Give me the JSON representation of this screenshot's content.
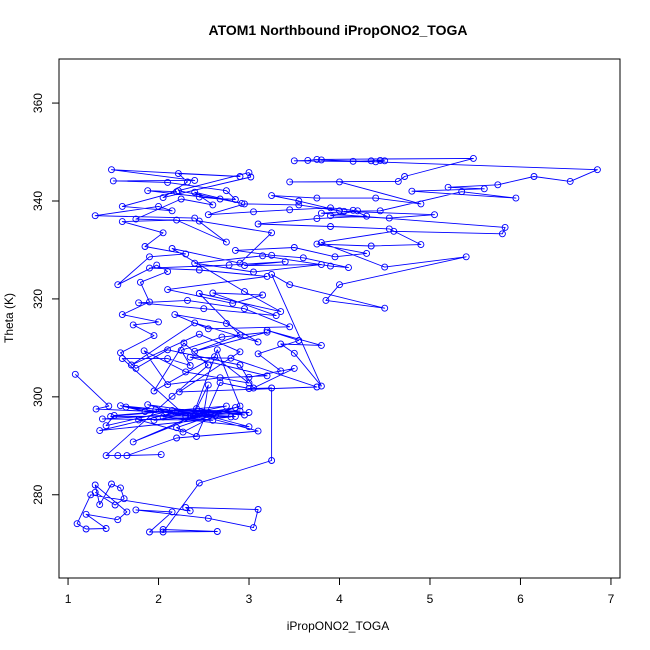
{
  "chart_data": {
    "type": "line",
    "title": "ATOM1 Northbound iPropONO2_TOGA",
    "xlabel": "iPropONO2_TOGA",
    "ylabel": "Theta (K)",
    "xlim": [
      0.9,
      7.1
    ],
    "ylim": [
      263,
      369
    ],
    "x_ticks": [
      1,
      2,
      3,
      4,
      5,
      6,
      7
    ],
    "y_ticks": [
      280,
      300,
      320,
      340,
      360
    ],
    "grid": false,
    "legend": "none",
    "series": [
      {
        "color": "#0000FF",
        "marker": "open-circle",
        "points": [
          [
            1.08,
            304.6
          ],
          [
            1.45,
            298.1
          ],
          [
            1.31,
            297.5
          ],
          [
            2.08,
            296.9
          ],
          [
            2.48,
            296.2
          ],
          [
            3.0,
            296.8
          ],
          [
            2.15,
            297.2
          ],
          [
            1.42,
            294.1
          ],
          [
            1.51,
            296.2
          ],
          [
            2.42,
            297.6
          ],
          [
            2.95,
            296.3
          ],
          [
            1.64,
            297.9
          ],
          [
            2.35,
            296.1
          ],
          [
            1.97,
            297.4
          ],
          [
            2.9,
            297.1
          ],
          [
            1.38,
            295.5
          ],
          [
            2.6,
            295.2
          ],
          [
            2.05,
            295.9
          ],
          [
            3.0,
            293.9
          ],
          [
            2.45,
            296.6
          ],
          [
            1.58,
            298.2
          ],
          [
            1.85,
            297.0
          ],
          [
            2.56,
            296.5
          ],
          [
            2.19,
            296.8
          ],
          [
            1.35,
            293.1
          ],
          [
            2.8,
            295.9
          ],
          [
            2.3,
            296.1
          ],
          [
            1.88,
            298.4
          ],
          [
            2.52,
            296.7
          ],
          [
            1.72,
            290.8
          ],
          [
            2.39,
            296.1
          ],
          [
            1.47,
            296.0
          ],
          [
            2.75,
            298.1
          ],
          [
            1.95,
            295.2
          ],
          [
            2.63,
            296.2
          ],
          [
            2.27,
            292.8
          ],
          [
            1.78,
            295.3
          ],
          [
            2.85,
            296.0
          ],
          [
            2.41,
            296.4
          ],
          [
            3.1,
            293.0
          ],
          [
            2.2,
            291.6
          ],
          [
            1.65,
            288.0
          ],
          [
            2.03,
            288.2
          ],
          [
            1.55,
            288.0
          ],
          [
            1.42,
            288.0
          ],
          [
            2.15,
            300.1
          ],
          [
            2.55,
            306.5
          ],
          [
            2.28,
            311.0
          ],
          [
            1.95,
            301.2
          ],
          [
            2.62,
            308.2
          ],
          [
            3.0,
            302.8
          ],
          [
            2.3,
            305.1
          ],
          [
            1.84,
            309.4
          ],
          [
            2.1,
            302.5
          ],
          [
            2.68,
            303.9
          ],
          [
            3.2,
            304.3
          ],
          [
            2.35,
            308.1
          ],
          [
            2.8,
            307.9
          ],
          [
            3.75,
            302.0
          ],
          [
            2.23,
            301.0
          ],
          [
            2.9,
            309.2
          ],
          [
            2.45,
            312.8
          ],
          [
            1.7,
            306.5
          ],
          [
            2.4,
            315.1
          ],
          [
            3.1,
            311.2
          ],
          [
            2.75,
            315.0
          ],
          [
            2.18,
            316.8
          ],
          [
            2.55,
            313.9
          ],
          [
            3.45,
            314.3
          ],
          [
            2.95,
            318.0
          ],
          [
            2.32,
            319.7
          ],
          [
            1.78,
            319.2
          ],
          [
            2.5,
            318.0
          ],
          [
            3.3,
            316.6
          ],
          [
            2.6,
            321.2
          ],
          [
            3.15,
            320.8
          ],
          [
            2.82,
            319.1
          ],
          [
            2.1,
            321.9
          ],
          [
            3.2,
            324.6
          ],
          [
            2.45,
            325.9
          ],
          [
            1.9,
            326.3
          ],
          [
            2.78,
            326.9
          ],
          [
            3.4,
            327.6
          ],
          [
            2.95,
            326.8
          ],
          [
            3.8,
            327.0
          ],
          [
            3.05,
            325.5
          ],
          [
            2.4,
            327.3
          ],
          [
            3.15,
            328.8
          ],
          [
            3.9,
            326.7
          ],
          [
            4.1,
            326.4
          ],
          [
            3.6,
            328.4
          ],
          [
            3.25,
            328.9
          ],
          [
            2.85,
            329.9
          ],
          [
            3.5,
            330.5
          ],
          [
            3.95,
            328.6
          ],
          [
            4.3,
            329.3
          ],
          [
            3.75,
            331.2
          ],
          [
            4.35,
            330.8
          ],
          [
            4.9,
            331.1
          ],
          [
            4.55,
            334.3
          ],
          [
            3.9,
            334.8
          ],
          [
            3.1,
            335.3
          ],
          [
            3.75,
            336.4
          ],
          [
            4.3,
            336.9
          ],
          [
            4.15,
            338.1
          ],
          [
            3.9,
            338.6
          ],
          [
            3.45,
            338.2
          ],
          [
            3.05,
            337.8
          ],
          [
            2.55,
            337.2
          ],
          [
            2.95,
            339.4
          ],
          [
            3.55,
            339.2
          ],
          [
            4.0,
            338.0
          ],
          [
            3.55,
            340.0
          ],
          [
            3.25,
            341.1
          ],
          [
            3.75,
            340.6
          ],
          [
            4.4,
            340.6
          ],
          [
            4.9,
            339.4
          ],
          [
            4.0,
            343.9
          ],
          [
            3.45,
            343.9
          ],
          [
            4.65,
            344.0
          ],
          [
            4.72,
            345.0
          ],
          [
            5.48,
            348.7
          ],
          [
            3.75,
            348.5
          ],
          [
            3.65,
            348.3
          ],
          [
            3.5,
            348.2
          ],
          [
            4.4,
            348.0
          ],
          [
            4.5,
            348.2
          ],
          [
            4.45,
            348.3
          ],
          [
            4.35,
            348.2
          ],
          [
            4.15,
            348.1
          ],
          [
            3.8,
            348.4
          ],
          [
            6.85,
            346.4
          ],
          [
            6.55,
            344.0
          ],
          [
            6.15,
            345.0
          ],
          [
            5.75,
            343.3
          ],
          [
            5.2,
            342.8
          ],
          [
            5.6,
            342.5
          ],
          [
            4.8,
            342.0
          ],
          [
            5.95,
            340.6
          ],
          [
            5.35,
            341.9
          ],
          [
            4.45,
            338.0
          ],
          [
            4.05,
            337.9
          ],
          [
            5.05,
            337.2
          ],
          [
            4.55,
            336.5
          ],
          [
            3.9,
            337.0
          ],
          [
            4.2,
            338.0
          ],
          [
            3.8,
            337.5
          ],
          [
            5.83,
            334.6
          ],
          [
            5.8,
            333.3
          ],
          [
            4.6,
            333.8
          ],
          [
            3.8,
            331.5
          ],
          [
            4.5,
            326.5
          ],
          [
            5.4,
            328.6
          ],
          [
            4.0,
            322.9
          ],
          [
            3.85,
            319.7
          ],
          [
            4.5,
            318.1
          ],
          [
            3.45,
            322.9
          ],
          [
            3.25,
            325.0
          ],
          [
            3.8,
            302.2
          ],
          [
            3.5,
            308.9
          ],
          [
            3.35,
            310.8
          ],
          [
            3.8,
            310.5
          ],
          [
            3.2,
            313.6
          ],
          [
            3.55,
            311.5
          ],
          [
            3.1,
            308.8
          ],
          [
            3.35,
            305.3
          ],
          [
            3.0,
            304.0
          ],
          [
            3.5,
            305.8
          ],
          [
            3.05,
            301.8
          ],
          [
            2.9,
            306.5
          ],
          [
            2.1,
            309.6
          ],
          [
            1.75,
            305.8
          ],
          [
            1.58,
            309.0
          ],
          [
            1.95,
            312.5
          ],
          [
            1.72,
            314.7
          ],
          [
            2.0,
            315.3
          ],
          [
            1.6,
            316.8
          ],
          [
            1.9,
            319.4
          ],
          [
            1.8,
            323.4
          ],
          [
            2.1,
            325.6
          ],
          [
            1.98,
            326.9
          ],
          [
            1.55,
            322.9
          ],
          [
            1.9,
            328.6
          ],
          [
            2.3,
            329.2
          ],
          [
            1.85,
            330.7
          ],
          [
            2.05,
            333.5
          ],
          [
            1.6,
            335.8
          ],
          [
            2.2,
            336.1
          ],
          [
            2.75,
            331.6
          ],
          [
            2.4,
            336.5
          ],
          [
            1.3,
            337.0
          ],
          [
            2.0,
            338.9
          ],
          [
            2.15,
            338.0
          ],
          [
            1.6,
            338.9
          ],
          [
            2.2,
            341.9
          ],
          [
            1.88,
            342.1
          ],
          [
            2.68,
            340.4
          ],
          [
            2.45,
            340.8
          ],
          [
            2.85,
            340.3
          ],
          [
            2.75,
            342.1
          ],
          [
            2.1,
            343.8
          ],
          [
            1.5,
            344.1
          ],
          [
            2.4,
            344.2
          ],
          [
            1.48,
            346.4
          ],
          [
            2.9,
            345.0
          ],
          [
            2.22,
            345.6
          ],
          [
            2.32,
            343.9
          ],
          [
            2.05,
            340.7
          ],
          [
            3.02,
            344.9
          ],
          [
            3.0,
            345.8
          ],
          [
            2.22,
            342.1
          ],
          [
            2.92,
            339.5
          ],
          [
            2.4,
            341.8
          ],
          [
            2.6,
            339.2
          ],
          [
            2.25,
            340.4
          ],
          [
            1.75,
            336.3
          ],
          [
            2.45,
            335.9
          ],
          [
            3.25,
            333.5
          ],
          [
            2.9,
            327.3
          ],
          [
            2.15,
            330.3
          ],
          [
            2.95,
            321.5
          ],
          [
            3.35,
            317.4
          ],
          [
            2.45,
            321.1
          ],
          [
            2.9,
            312.6
          ],
          [
            2.4,
            309.3
          ],
          [
            3.2,
            313.2
          ],
          [
            2.7,
            312.2
          ],
          [
            2.25,
            309.5
          ],
          [
            2.35,
            306.4
          ],
          [
            2.1,
            307.8
          ],
          [
            1.6,
            307.8
          ],
          [
            2.3,
            296.1
          ],
          [
            2.6,
            296.5
          ],
          [
            2.85,
            297.8
          ],
          [
            2.5,
            296.7
          ],
          [
            2.55,
            302.4
          ],
          [
            2.38,
            296.1
          ],
          [
            2.65,
            309.6
          ],
          [
            2.9,
            298.1
          ],
          [
            2.2,
            293.7
          ],
          [
            2.42,
            291.9
          ],
          [
            2.68,
            302.9
          ],
          [
            3.0,
            301.7
          ],
          [
            3.25,
            301.8
          ],
          [
            3.25,
            287.0
          ],
          [
            2.45,
            282.4
          ],
          [
            2.05,
            272.4
          ],
          [
            2.05,
            272.9
          ],
          [
            2.65,
            272.5
          ],
          [
            1.9,
            272.4
          ],
          [
            2.15,
            276.5
          ],
          [
            1.75,
            276.9
          ],
          [
            2.55,
            275.2
          ],
          [
            3.05,
            273.3
          ],
          [
            3.1,
            277.0
          ],
          [
            2.3,
            277.4
          ],
          [
            2.35,
            276.7
          ],
          [
            1.25,
            280.0
          ],
          [
            1.1,
            274.1
          ],
          [
            1.2,
            273.0
          ],
          [
            1.42,
            273.1
          ],
          [
            1.2,
            276.0
          ],
          [
            1.55,
            274.9
          ],
          [
            1.65,
            276.5
          ],
          [
            1.3,
            282.0
          ],
          [
            1.35,
            278.0
          ],
          [
            1.48,
            282.2
          ],
          [
            1.58,
            281.4
          ],
          [
            1.62,
            279.2
          ],
          [
            1.52,
            277.9
          ],
          [
            1.3,
            280.5
          ]
        ]
      }
    ]
  }
}
